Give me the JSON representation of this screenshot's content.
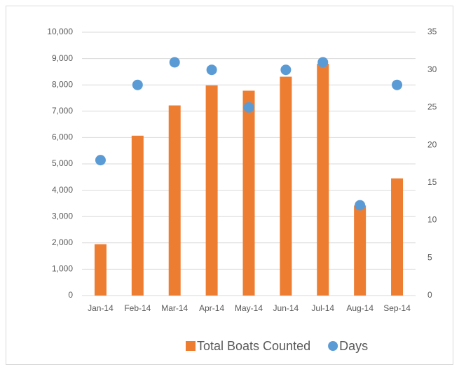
{
  "chart_data": {
    "type": "bar",
    "categories": [
      "Jan-14",
      "Feb-14",
      "Mar-14",
      "Apr-14",
      "May-14",
      "Jun-14",
      "Jul-14",
      "Aug-14",
      "Sep-14"
    ],
    "series": [
      {
        "name": "Total Boats Counted",
        "type": "bar",
        "color": "#ED7D31",
        "values": [
          1950,
          6070,
          7220,
          7980,
          7780,
          8310,
          8800,
          3420,
          4450
        ]
      },
      {
        "name": "Days",
        "type": "scatter",
        "axis": "y2",
        "color": "#5B9BD5",
        "values": [
          18,
          28,
          31,
          30,
          25,
          30,
          31,
          12,
          28
        ]
      }
    ],
    "ylim": [
      0,
      10000
    ],
    "yticks": [
      0,
      {
        "value": 1000,
        "label": "1,000"
      },
      {
        "value": 2000,
        "label": "2,000"
      },
      {
        "value": 3000,
        "label": "3,000"
      },
      {
        "value": 4000,
        "label": "4,000"
      },
      {
        "value": 5000,
        "label": "5,000"
      },
      {
        "value": 6000,
        "label": "6,000"
      },
      {
        "value": 7000,
        "label": "7,000"
      },
      {
        "value": 8000,
        "label": "8,000"
      },
      {
        "value": 9000,
        "label": "9,000"
      },
      {
        "value": 10000,
        "label": "10,000"
      }
    ],
    "y2lim": [
      0,
      35
    ],
    "y2ticks": [
      0,
      5,
      10,
      15,
      20,
      25,
      30,
      35
    ],
    "grid": true,
    "legend": "bottom"
  }
}
